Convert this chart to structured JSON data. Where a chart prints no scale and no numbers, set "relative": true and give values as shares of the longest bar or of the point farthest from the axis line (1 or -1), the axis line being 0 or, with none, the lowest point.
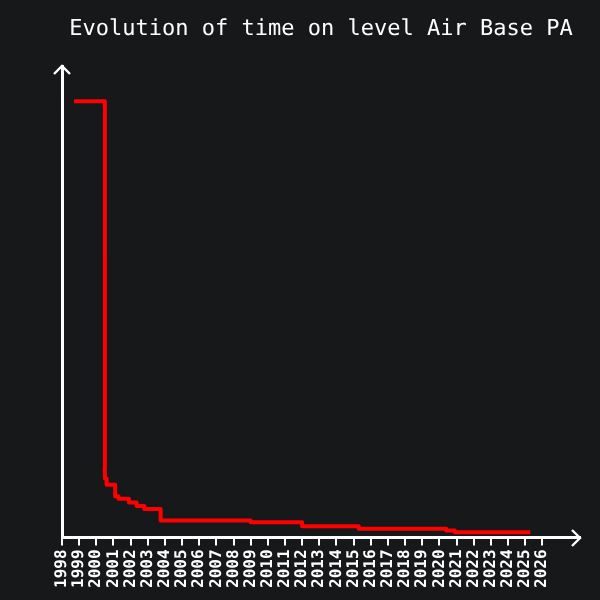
{
  "chart_data": {
    "type": "step",
    "title": "Evolution of time on level Air Base PA",
    "relative": true,
    "x": [
      1998.7,
      2000.5,
      2000.6,
      2001.1,
      2001.3,
      2001.9,
      2002.35,
      2002.8,
      2003.75,
      2009.0,
      2012.0,
      2015.3,
      2020.4,
      2020.9,
      2025.3
    ],
    "series": [
      {
        "color": "#ff0000",
        "values": [
          1,
          0.135,
          0.121,
          0.094,
          0.089,
          0.08,
          0.072,
          0.065,
          0.039,
          0.035,
          0.026,
          0.02,
          0.016,
          0.012,
          0.012
        ]
      }
    ],
    "xlim": [
      1998,
      2028.2
    ],
    "xticks": [
      1998,
      1999,
      2000,
      2001,
      2002,
      2003,
      2004,
      2005,
      2006,
      2007,
      2008,
      2009,
      2010,
      2011,
      2012,
      2013,
      2014,
      2015,
      2016,
      2017,
      2018,
      2019,
      2020,
      2021,
      2022,
      2023,
      2024,
      2025,
      2026
    ],
    "grid": false,
    "legend": false,
    "marker": "none",
    "line_style": "solid"
  }
}
